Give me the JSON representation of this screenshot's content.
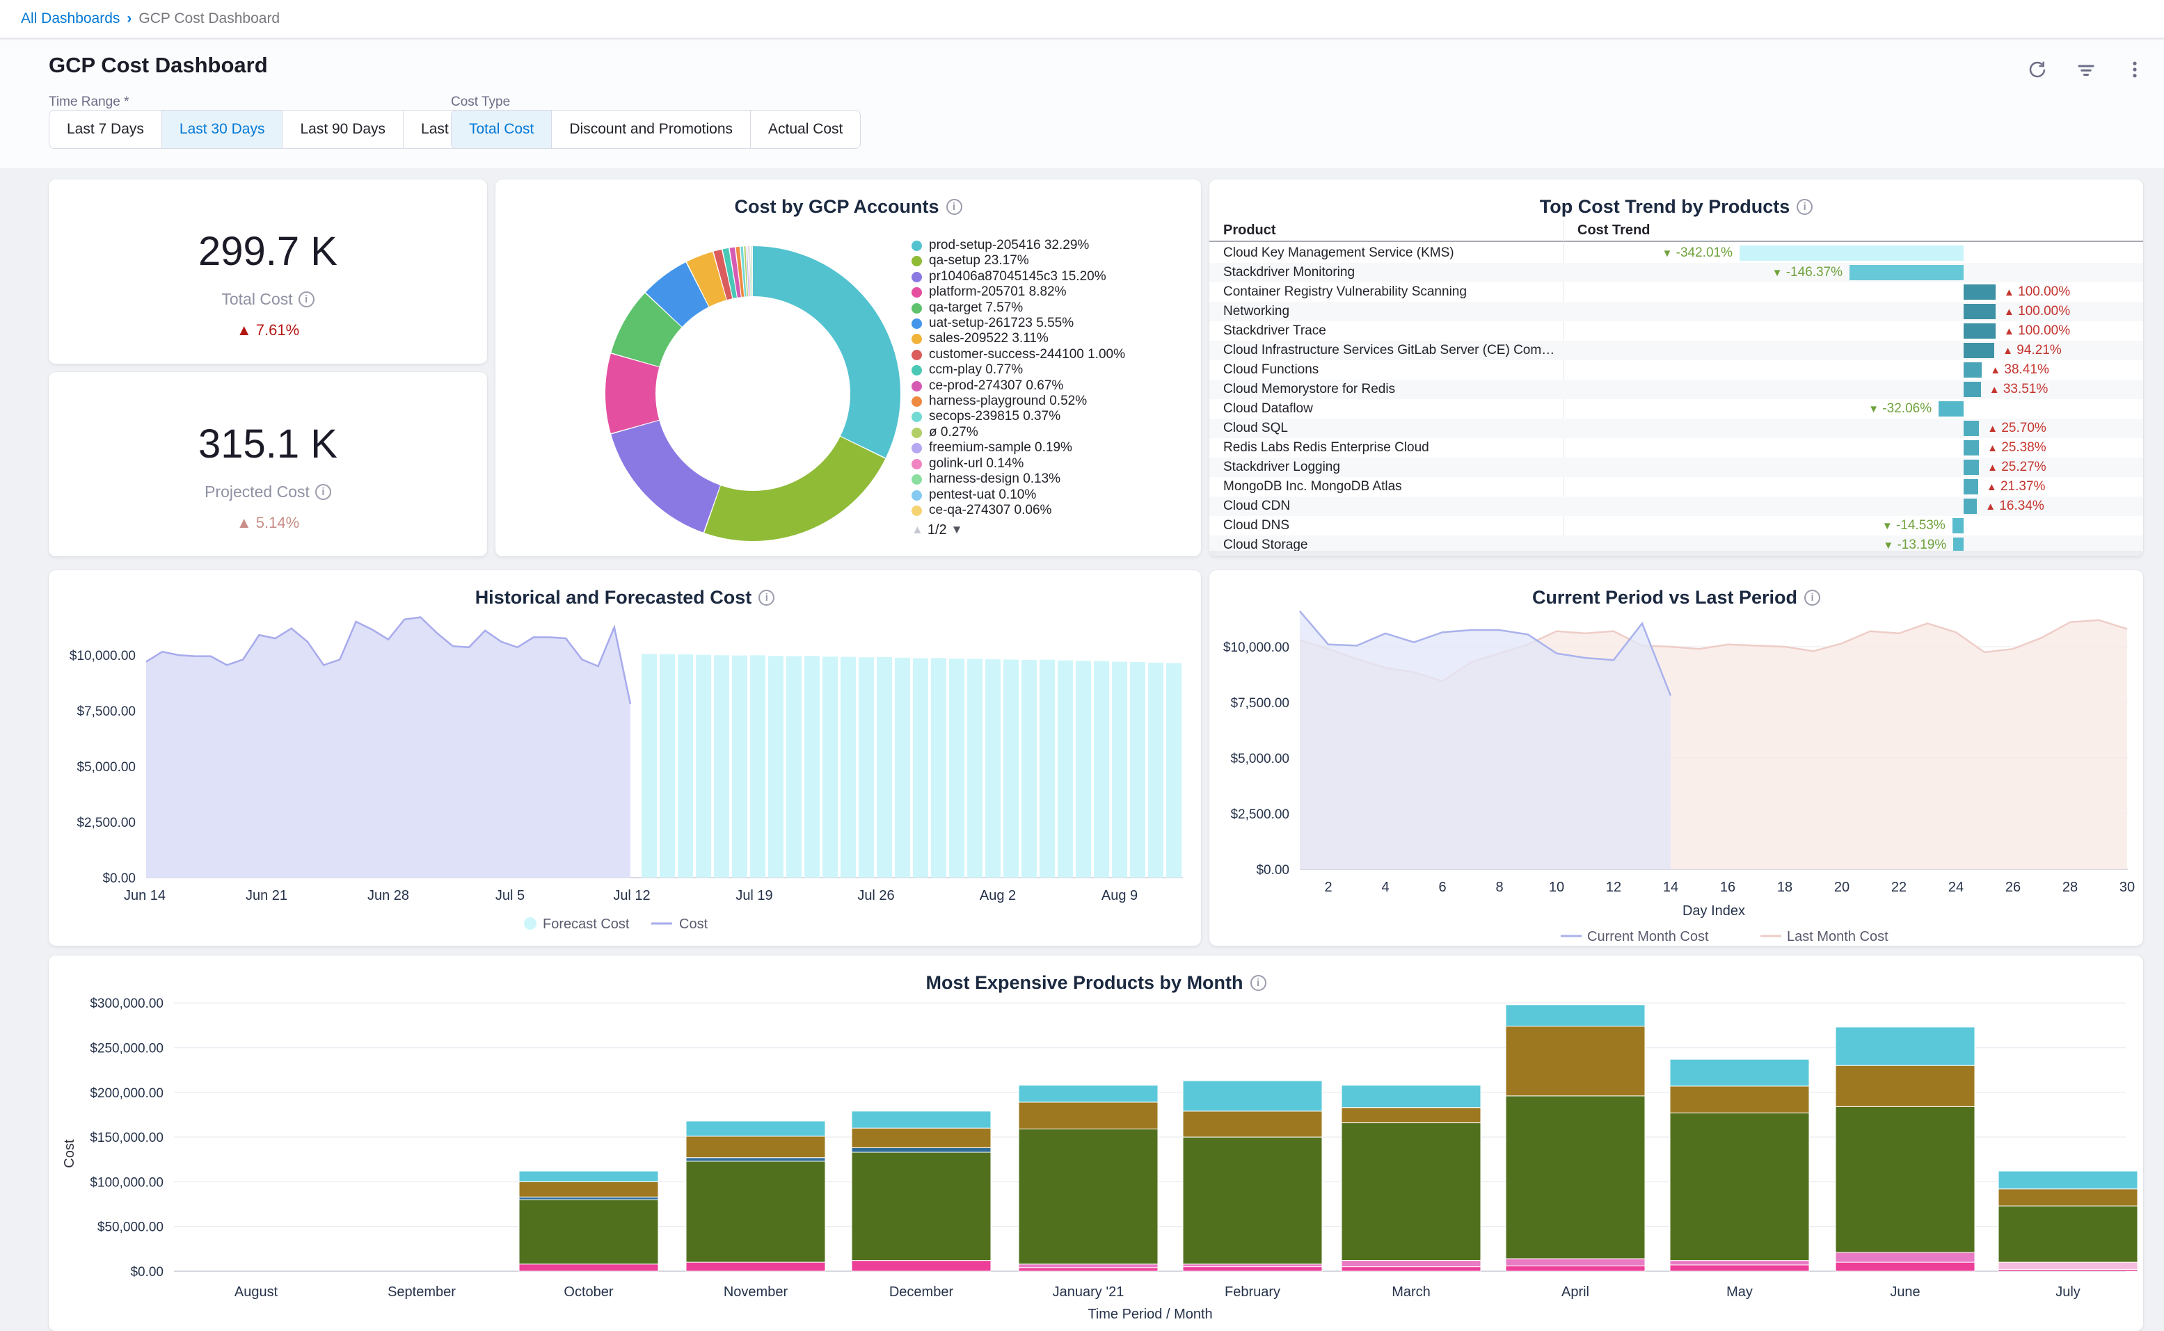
{
  "breadcrumb": {
    "root": "All Dashboards",
    "separator": "›",
    "current": "GCP Cost Dashboard"
  },
  "header": {
    "title": "GCP Cost Dashboard"
  },
  "filters": {
    "time_range_label": "Time Range *",
    "time_range_options": [
      "Last 7 Days",
      "Last 30 Days",
      "Last 90 Days",
      "Last year"
    ],
    "time_range_selected": "Last 30 Days",
    "cost_type_label": "Cost Type",
    "cost_type_options": [
      "Total Cost",
      "Discount and Promotions",
      "Actual Cost"
    ],
    "cost_type_selected": "Total Cost"
  },
  "kpis": [
    {
      "value": "299.7 K",
      "label": "Total Cost",
      "delta": "7.61%",
      "direction": "up",
      "color": "#b41712"
    },
    {
      "value": "315.1 K",
      "label": "Projected Cost",
      "delta": "5.14%",
      "direction": "up",
      "color": "#c88f88"
    }
  ],
  "donut": {
    "title": "Cost by GCP Accounts",
    "pager": "1/2",
    "slices": [
      {
        "label": "prod-setup-205416 32.29%",
        "pct": 32.29,
        "color": "#52c2cf"
      },
      {
        "label": "qa-setup 23.17%",
        "pct": 23.17,
        "color": "#8fbb37"
      },
      {
        "label": "pr10406a87045145c3 15.20%",
        "pct": 15.2,
        "color": "#8b79e3"
      },
      {
        "label": "platform-205701 8.82%",
        "pct": 8.82,
        "color": "#e44f9f"
      },
      {
        "label": "qa-target 7.57%",
        "pct": 7.57,
        "color": "#5ec26c"
      },
      {
        "label": "uat-setup-261723 5.55%",
        "pct": 5.55,
        "color": "#4495ea"
      },
      {
        "label": "sales-209522 3.11%",
        "pct": 3.11,
        "color": "#f2b33a"
      },
      {
        "label": "customer-success-244100 1.00%",
        "pct": 1.0,
        "color": "#db5c5c"
      },
      {
        "label": "ccm-play 0.77%",
        "pct": 0.77,
        "color": "#49c9b5"
      },
      {
        "label": "ce-prod-274307 0.67%",
        "pct": 0.67,
        "color": "#d55bb3"
      },
      {
        "label": "harness-playground 0.52%",
        "pct": 0.52,
        "color": "#ee8a41"
      },
      {
        "label": "secops-239815 0.37%",
        "pct": 0.37,
        "color": "#72d9d3"
      },
      {
        "label": "ø 0.27%",
        "pct": 0.27,
        "color": "#b1ce67"
      },
      {
        "label": "freemium-sample 0.19%",
        "pct": 0.19,
        "color": "#b5a7f0"
      },
      {
        "label": "golink-url 0.14%",
        "pct": 0.14,
        "color": "#f085c2"
      },
      {
        "label": "harness-design 0.13%",
        "pct": 0.13,
        "color": "#8bde9f"
      },
      {
        "label": "pentest-uat 0.10%",
        "pct": 0.1,
        "color": "#86c9f1"
      },
      {
        "label": "ce-qa-274307 0.06%",
        "pct": 0.06,
        "color": "#f5d373"
      }
    ]
  },
  "trend_table": {
    "title": "Top Cost Trend by Products",
    "col_product": "Product",
    "col_trend": "Cost Trend",
    "up_color": "#c5342e",
    "down_color": "#6fa23b",
    "rows": [
      {
        "product": "Cloud Key Management Service (KMS)",
        "value": -342.01,
        "display": "-342.01%",
        "bar_color": "#c9f5fa"
      },
      {
        "product": "Stackdriver Monitoring",
        "value": -146.37,
        "display": "-146.37%",
        "bar_color": "#67c8d7"
      },
      {
        "product": "Container Registry Vulnerability Scanning",
        "value": 100.0,
        "display": "100.00%",
        "bar_color": "#3e92a5"
      },
      {
        "product": "Networking",
        "value": 100.0,
        "display": "100.00%",
        "bar_color": "#3e92a5"
      },
      {
        "product": "Stackdriver Trace",
        "value": 100.0,
        "display": "100.00%",
        "bar_color": "#3e92a5"
      },
      {
        "product": "Cloud Infrastructure Services GitLab Server (CE) Community Edition on Ubuntu Server...",
        "value": 94.21,
        "display": "94.21%",
        "bar_color": "#3e92a5"
      },
      {
        "product": "Cloud Functions",
        "value": 38.41,
        "display": "38.41%",
        "bar_color": "#4aa4b7"
      },
      {
        "product": "Cloud Memorystore for Redis",
        "value": 33.51,
        "display": "33.51%",
        "bar_color": "#4aa4b7"
      },
      {
        "product": "Cloud Dataflow",
        "value": -32.06,
        "display": "-32.06%",
        "bar_color": "#55b8ca"
      },
      {
        "product": "Cloud SQL",
        "value": 25.7,
        "display": "25.70%",
        "bar_color": "#4facbf"
      },
      {
        "product": "Redis Labs Redis Enterprise Cloud",
        "value": 25.38,
        "display": "25.38%",
        "bar_color": "#4facbf"
      },
      {
        "product": "Stackdriver Logging",
        "value": 25.27,
        "display": "25.27%",
        "bar_color": "#4facbf"
      },
      {
        "product": "MongoDB Inc. MongoDB Atlas",
        "value": 21.37,
        "display": "21.37%",
        "bar_color": "#4facbf"
      },
      {
        "product": "Cloud CDN",
        "value": 16.34,
        "display": "16.34%",
        "bar_color": "#4facbf"
      },
      {
        "product": "Cloud DNS",
        "value": -14.53,
        "display": "-14.53%",
        "bar_color": "#58bccd"
      },
      {
        "product": "Cloud Storage",
        "value": -13.19,
        "display": "-13.19%",
        "bar_color": "#58bccd"
      }
    ]
  },
  "historical": {
    "type": "area+bar",
    "title": "Historical and Forecasted Cost",
    "y_ticks": [
      "$10,000.00",
      "$7,500.00",
      "$5,000.00",
      "$2,500.00",
      "$0.00"
    ],
    "x_ticks": [
      "Jun 14",
      "Jun 21",
      "Jun 28",
      "Jul 5",
      "Jul 12",
      "Jul 19",
      "Jul 26",
      "Aug 2",
      "Aug 9"
    ],
    "cost_fill": "#dfe1f9",
    "cost_line": "#a7abec",
    "forecast_fill": "#cef6fa",
    "legend": [
      {
        "label": "Forecast Cost"
      },
      {
        "label": "Cost"
      }
    ],
    "cost_values": [
      9700,
      10150,
      10000,
      9950,
      9950,
      9550,
      9800,
      10900,
      10750,
      11200,
      10600,
      9550,
      9800,
      11500,
      11150,
      10700,
      11600,
      11700,
      11000,
      10400,
      10350,
      11100,
      10600,
      10350,
      10800,
      10800,
      10750,
      9800,
      9500,
      11250,
      7800
    ],
    "forecast_values": [
      10050,
      10040,
      10030,
      10010,
      9990,
      9980,
      9990,
      9960,
      9950,
      9960,
      9930,
      9920,
      9900,
      9910,
      9880,
      9860,
      9870,
      9840,
      9830,
      9810,
      9800,
      9780,
      9790,
      9760,
      9740,
      9730,
      9700,
      9690,
      9660,
      9640
    ]
  },
  "period_compare": {
    "type": "area",
    "title": "Current Period vs Last Period",
    "y_ticks": [
      "$10,000.00",
      "$7,500.00",
      "$5,000.00",
      "$2,500.00",
      "$0.00"
    ],
    "x_ticks": [
      2,
      4,
      6,
      8,
      10,
      12,
      14,
      16,
      18,
      20,
      22,
      24,
      26,
      28,
      30
    ],
    "x_label": "Day Index",
    "current_line": "#a9b2ec",
    "current_fill": "rgba(226,229,248,0.75)",
    "last_line": "#eecdc7",
    "last_fill": "rgba(249,235,232,0.85)",
    "legend": [
      {
        "label": "Current Month Cost"
      },
      {
        "label": "Last Month Cost"
      }
    ],
    "current_values": [
      11600,
      10100,
      10050,
      10600,
      10200,
      10650,
      10750,
      10750,
      10550,
      9700,
      9500,
      9400,
      11050,
      7800
    ],
    "last_values": [
      10300,
      9900,
      9450,
      9050,
      8850,
      8450,
      9300,
      9700,
      10100,
      10700,
      10600,
      10700,
      10050,
      10000,
      9900,
      10100,
      10050,
      10000,
      9800,
      10150,
      10700,
      10600,
      11050,
      10650,
      9750,
      9900,
      10400,
      11100,
      11200,
      10800
    ]
  },
  "monthly": {
    "type": "stacked-bar",
    "title": "Most Expensive Products by Month",
    "y_label": "Cost",
    "x_label": "Time Period / Month",
    "y_ticks": [
      "$0.00",
      "$50,000.00",
      "$100,000.00",
      "$150,000.00",
      "$200,000.00",
      "$250,000.00",
      "$300,000.00"
    ],
    "months": [
      "August",
      "September",
      "October",
      "November",
      "December",
      "January '21",
      "February",
      "March",
      "April",
      "May",
      "June",
      "July"
    ],
    "series": [
      {
        "name": "series-pink",
        "color": "#ed3e98",
        "values": [
          0,
          0,
          8000,
          10000,
          12000,
          4000,
          5000,
          5000,
          6000,
          7000,
          10000,
          2000
        ]
      },
      {
        "name": "series-orchid",
        "color": "#e87bc4",
        "values": [
          0,
          0,
          0,
          0,
          0,
          4000,
          3000,
          7000,
          8000,
          5000,
          11000,
          0
        ]
      },
      {
        "name": "series-pale-pink",
        "color": "#f4bcde",
        "values": [
          0,
          0,
          0,
          0,
          0,
          0,
          0,
          0,
          0,
          0,
          0,
          8000
        ]
      },
      {
        "name": "series-olive",
        "color": "#51701d",
        "values": [
          0,
          0,
          72000,
          113000,
          121000,
          151000,
          142000,
          154000,
          182000,
          165000,
          163000,
          63000
        ]
      },
      {
        "name": "series-steel-blue",
        "color": "#2f6b99",
        "values": [
          0,
          0,
          3000,
          4000,
          5000,
          0,
          0,
          0,
          0,
          0,
          0,
          0
        ]
      },
      {
        "name": "series-brown",
        "color": "#9e7820",
        "values": [
          0,
          0,
          17000,
          24000,
          22000,
          30000,
          29000,
          17000,
          78000,
          30000,
          46000,
          19000
        ]
      },
      {
        "name": "series-cyan",
        "color": "#5bc8da",
        "values": [
          0,
          0,
          12000,
          17000,
          19000,
          19000,
          34000,
          25000,
          24000,
          30000,
          43000,
          20000
        ]
      }
    ]
  }
}
